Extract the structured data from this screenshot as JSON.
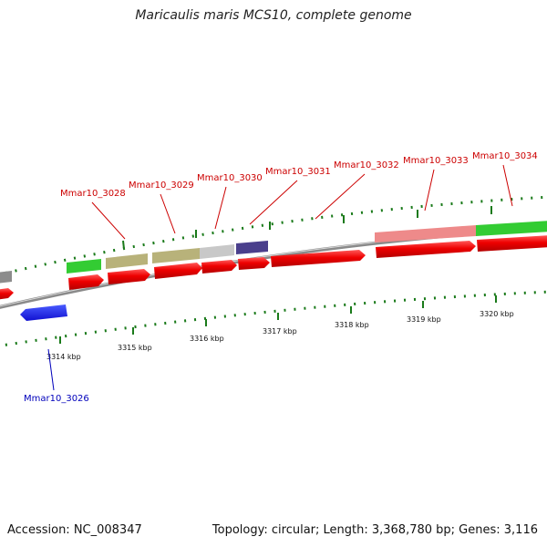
{
  "title": "Maricaulis maris MCS10, complete genome",
  "footer": {
    "accession": "Accession: NC_008347",
    "stats": "Topology: circular; Length: 3,368,780 bp; Genes: 3,116"
  },
  "colors": {
    "cds": "#ee0000",
    "label_red": "#cc0000",
    "label_blue": "#0000bb",
    "tick": "#1a7a1a",
    "backbone": "#888888"
  },
  "ruler": [
    {
      "label": "3314 kbp"
    },
    {
      "label": "3315 kbp"
    },
    {
      "label": "3316 kbp"
    },
    {
      "label": "3317 kbp"
    },
    {
      "label": "3318 kbp"
    },
    {
      "label": "3319 kbp"
    },
    {
      "label": "3320 kbp"
    }
  ],
  "genes": [
    {
      "label": "Mmar10_3026",
      "color": "blue"
    },
    {
      "label": "Mmar10_3028",
      "color": "red"
    },
    {
      "label": "Mmar10_3029",
      "color": "red"
    },
    {
      "label": "Mmar10_3030",
      "color": "red"
    },
    {
      "label": "Mmar10_3031",
      "color": "red"
    },
    {
      "label": "Mmar10_3032",
      "color": "red"
    },
    {
      "label": "Mmar10_3033",
      "color": "red"
    },
    {
      "label": "Mmar10_3034",
      "color": "red"
    }
  ]
}
